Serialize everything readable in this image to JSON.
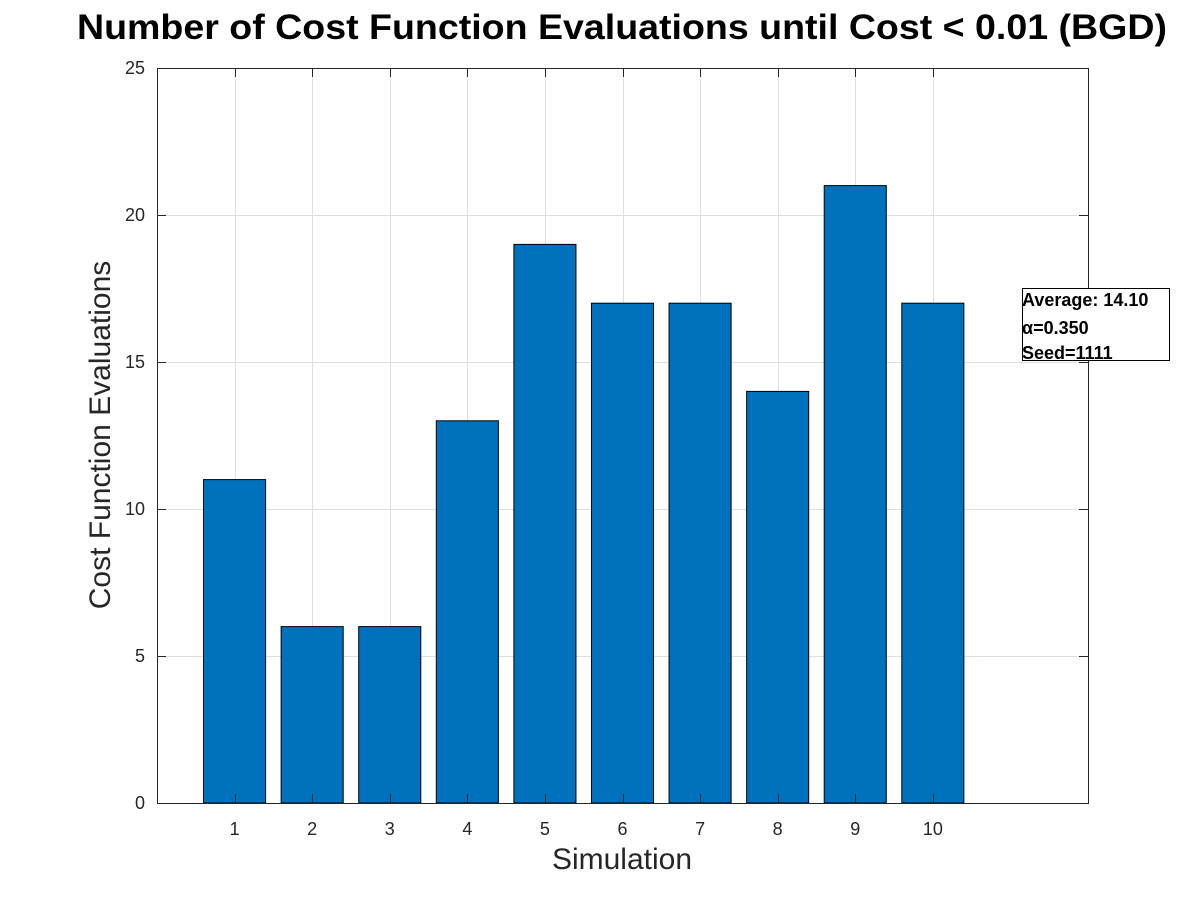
{
  "chart_data": {
    "type": "bar",
    "title": "Number of Cost Function Evaluations until Cost < 0.01 (BGD)",
    "xlabel": "Simulation",
    "ylabel": "Cost Function Evaluations",
    "categories": [
      "1",
      "2",
      "3",
      "4",
      "5",
      "6",
      "7",
      "8",
      "9",
      "10"
    ],
    "values": [
      11,
      6,
      6,
      13,
      19,
      17,
      17,
      14,
      21,
      17
    ],
    "xlim": [
      0,
      12
    ],
    "ylim": [
      0,
      25
    ],
    "yticks": [
      0,
      5,
      10,
      15,
      20,
      25
    ],
    "ytick_labels": [
      "0",
      "5",
      "10",
      "15",
      "20",
      "25"
    ],
    "grid": true,
    "bar_color": "#0072BD",
    "annotation": {
      "lines": [
        "Average: 14.10",
        "α=0.350",
        "Seed=1111"
      ]
    }
  }
}
